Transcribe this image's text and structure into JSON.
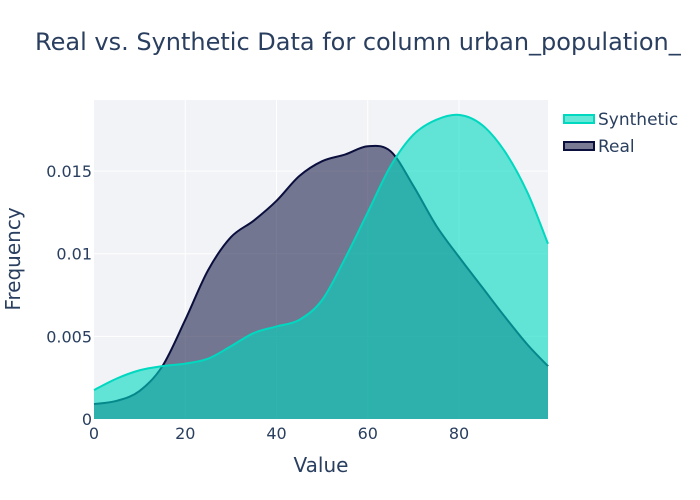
{
  "chart_data": {
    "type": "area",
    "title": "Real vs. Synthetic Data for column urban_population_",
    "xlabel": "Value",
    "ylabel": "Frequency",
    "xlim": [
      0,
      99.5
    ],
    "ylim": [
      0,
      0.0193
    ],
    "x_ticks": [
      0,
      20,
      40,
      60,
      80
    ],
    "x_tick_labels": [
      "0",
      "20",
      "40",
      "60",
      "80"
    ],
    "y_ticks": [
      0,
      0.005,
      0.01,
      0.015
    ],
    "y_tick_labels": [
      "0",
      "0.005",
      "0.01",
      "0.015"
    ],
    "grid": true,
    "legend_position": "top-right",
    "x": [
      0,
      5,
      10,
      15,
      20,
      25,
      30,
      35,
      40,
      45,
      50,
      55,
      60,
      65,
      70,
      75,
      80,
      85,
      90,
      95,
      99.5
    ],
    "series": [
      {
        "name": "Synthetic",
        "color": "#00d8c0",
        "fill": "#7ae8dd",
        "values": [
          0.00175,
          0.00245,
          0.00295,
          0.0032,
          0.00335,
          0.00365,
          0.0044,
          0.0052,
          0.0056,
          0.006,
          0.0072,
          0.0097,
          0.0125,
          0.0153,
          0.0172,
          0.0181,
          0.0184,
          0.0178,
          0.0162,
          0.0137,
          0.0106
        ]
      },
      {
        "name": "Real",
        "color": "#0b0f3d",
        "fill": "#7b7c98",
        "values": [
          0.0009,
          0.0011,
          0.0017,
          0.0032,
          0.006,
          0.009,
          0.011,
          0.012,
          0.0132,
          0.0147,
          0.0156,
          0.016,
          0.0165,
          0.0162,
          0.0141,
          0.0117,
          0.0098,
          0.008,
          0.0062,
          0.0045,
          0.0032
        ]
      }
    ]
  }
}
